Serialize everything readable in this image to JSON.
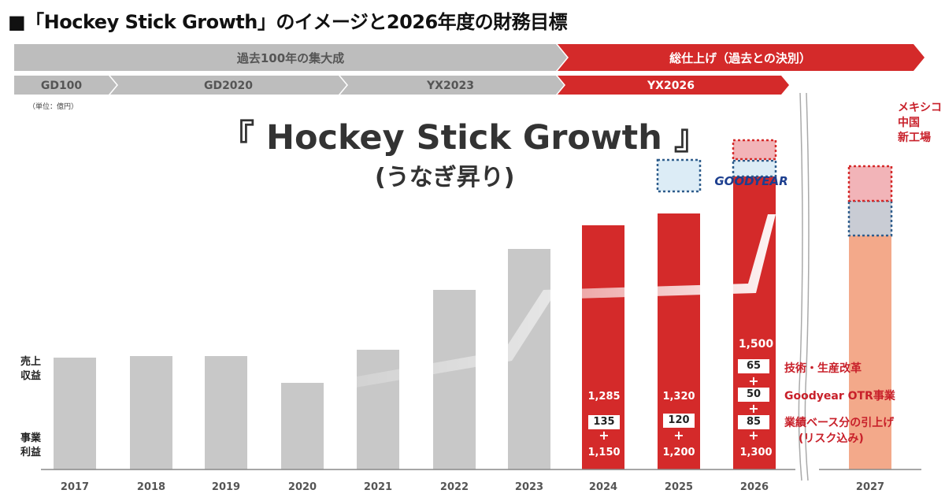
{
  "page": {
    "title": "■「Hockey Stick Growth」のイメージと2026年度の財務目標",
    "unit_note": "（単位：億円）",
    "big_title": "『 Hockey Stick Growth 』",
    "big_subtitle": "(うなぎ昇り)",
    "logo_text": "GOODYEAR"
  },
  "timeline": {
    "top_row": [
      {
        "label": "過去100年の集大成",
        "color": "#bdbdbd"
      },
      {
        "label": "総仕上げ（過去との決別）",
        "color": "#d42a2a"
      }
    ],
    "bottom_row": [
      {
        "label": "GD100",
        "color": "#bdbdbd"
      },
      {
        "label": "GD2020",
        "color": "#bdbdbd"
      },
      {
        "label": "YX2023",
        "color": "#bdbdbd"
      },
      {
        "label": "YX2026",
        "color": "#d42a2a"
      }
    ]
  },
  "y_labels": {
    "revenue": [
      "売上",
      "収益"
    ],
    "profit": [
      "事業",
      "利益"
    ]
  },
  "legend": {
    "pink_zone": [
      "メキシコ",
      "中国",
      "新工場"
    ],
    "item_65": "技術・生産改革",
    "item_50": "Goodyear OTR事業",
    "item_85": [
      "業績ベース分の引上げ",
      "(リスク込み)"
    ]
  },
  "annotations": {
    "y2024": {
      "total": "1,285",
      "add": "135",
      "plus": "+",
      "base": "1,150"
    },
    "y2025": {
      "total": "1,320",
      "add": "120",
      "plus": "+",
      "base": "1,200"
    },
    "y2026": {
      "total": "1,500",
      "add1": "65",
      "add2": "50",
      "add3": "85",
      "plus": "+",
      "base": "1,300"
    }
  },
  "chart_data": {
    "type": "bar",
    "title": "『 Hockey Stick Growth 』(うなぎ昇り)",
    "xlabel": "",
    "ylabel": "売上収益 / 事業利益（単位：億円）",
    "categories": [
      "2017",
      "2018",
      "2019",
      "2020",
      "2021",
      "2022",
      "2023",
      "2024",
      "2025",
      "2026",
      "2027"
    ],
    "series": [
      {
        "name": "売上収益 (relative height, no scale shown)",
        "color": "#c8c8c8",
        "values": [
          142,
          144,
          144,
          110,
          152,
          228,
          280,
          310,
          325,
          375,
          385
        ]
      },
      {
        "name": "事業利益",
        "values_label": [
          null,
          null,
          null,
          null,
          null,
          null,
          null,
          "1,285",
          "1,320",
          "1,500",
          null
        ],
        "components_2024": {
          "base": 1150,
          "add": 135
        },
        "components_2025": {
          "base": 1200,
          "add": 120
        },
        "components_2026": {
          "base": 1300,
          "technology_production_reform": 65,
          "goodyear_otr": 50,
          "performance_uplift": 85
        }
      }
    ],
    "colors": {
      "gray": "#c8c8c8",
      "red": "#d42a2a",
      "light_blue": "#dcecf6",
      "pink": "#f2b4b8",
      "salmon": "#f3a98a",
      "dashed_border": "#2f5d8c"
    }
  }
}
